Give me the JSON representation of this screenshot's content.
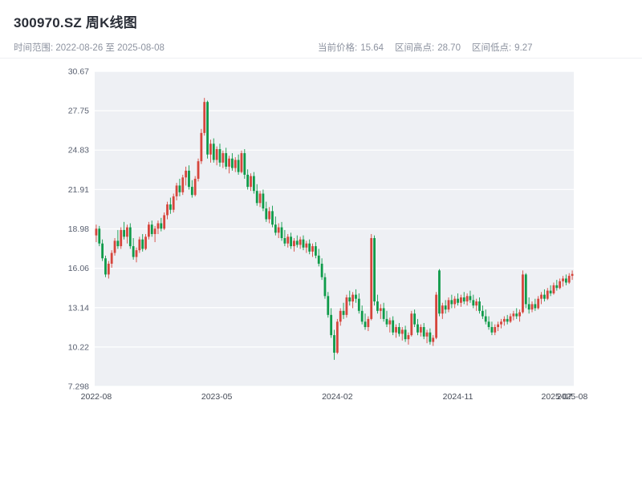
{
  "header": {
    "title": "300970.SZ 周K线图",
    "time_range": "时间范围: 2022-08-26 至 2025-08-08",
    "stats": [
      {
        "label": "当前价格:",
        "value": "15.64"
      },
      {
        "label": "区间高点:",
        "value": "28.70"
      },
      {
        "label": "区间低点:",
        "value": "9.27"
      }
    ]
  },
  "chart_data": {
    "type": "candlestick",
    "title": "300970.SZ 周K线图",
    "symbol": "300970.SZ",
    "period": "weekly",
    "start_date": "2022-08-26",
    "end_date": "2025-08-08",
    "current_price": 15.64,
    "range_high": 28.7,
    "range_low": 9.27,
    "y_min": 7.298,
    "y_max": 30.67,
    "grid": true,
    "y_ticks": [
      {
        "value": 30.67,
        "label": "30.67"
      },
      {
        "value": 27.75,
        "label": "27.75"
      },
      {
        "value": 24.83,
        "label": "24.83"
      },
      {
        "value": 21.91,
        "label": "21.91"
      },
      {
        "value": 18.98,
        "label": "18.98"
      },
      {
        "value": 16.06,
        "label": "16.06"
      },
      {
        "value": 13.14,
        "label": "13.14"
      },
      {
        "value": 10.22,
        "label": "10.22"
      },
      {
        "value": 7.298,
        "label": "7.298"
      }
    ],
    "x_ticks": [
      {
        "index": 0,
        "label": "2022-08"
      },
      {
        "index": 39,
        "label": "2023-05"
      },
      {
        "index": 78,
        "label": "2024-02"
      },
      {
        "index": 117,
        "label": "2024-11"
      },
      {
        "index": 149,
        "label": "2025-07"
      },
      {
        "index": 154,
        "label": "2025-08"
      }
    ],
    "up_color": "#d6453c",
    "down_color": "#0f9b4a",
    "plot_bg": "#eef0f4",
    "grid_color": "#ffffff",
    "candles": [
      [
        18.5,
        19.3,
        18.0,
        19.0
      ],
      [
        19.0,
        19.2,
        17.7,
        17.9
      ],
      [
        17.9,
        18.2,
        16.6,
        16.8
      ],
      [
        16.8,
        17.0,
        15.4,
        15.6
      ],
      [
        15.6,
        16.6,
        15.3,
        16.4
      ],
      [
        16.4,
        17.4,
        16.1,
        17.2
      ],
      [
        17.2,
        18.3,
        17.0,
        18.1
      ],
      [
        18.1,
        18.9,
        17.5,
        17.7
      ],
      [
        17.7,
        19.1,
        17.5,
        18.9
      ],
      [
        18.9,
        19.5,
        18.2,
        18.4
      ],
      [
        18.4,
        19.3,
        17.9,
        19.1
      ],
      [
        19.1,
        19.4,
        17.5,
        17.7
      ],
      [
        17.7,
        18.3,
        16.7,
        16.9
      ],
      [
        16.9,
        17.6,
        16.5,
        17.4
      ],
      [
        17.4,
        18.4,
        17.2,
        18.2
      ],
      [
        18.2,
        18.6,
        17.3,
        17.5
      ],
      [
        17.5,
        18.6,
        17.4,
        18.4
      ],
      [
        18.4,
        19.5,
        18.2,
        19.3
      ],
      [
        19.3,
        19.6,
        18.4,
        18.6
      ],
      [
        18.6,
        19.2,
        18.0,
        19.0
      ],
      [
        19.0,
        19.6,
        18.6,
        19.4
      ],
      [
        19.4,
        19.8,
        18.8,
        19.0
      ],
      [
        19.0,
        20.2,
        18.9,
        20.0
      ],
      [
        20.0,
        21.0,
        19.7,
        20.8
      ],
      [
        20.8,
        21.3,
        20.1,
        20.4
      ],
      [
        20.4,
        21.6,
        20.2,
        21.4
      ],
      [
        21.4,
        22.4,
        21.1,
        22.2
      ],
      [
        22.2,
        22.7,
        21.4,
        21.7
      ],
      [
        21.7,
        23.0,
        21.5,
        22.8
      ],
      [
        22.8,
        23.6,
        22.2,
        23.3
      ],
      [
        23.3,
        23.7,
        21.9,
        22.1
      ],
      [
        22.1,
        22.6,
        21.3,
        21.5
      ],
      [
        21.5,
        22.9,
        21.4,
        22.7
      ],
      [
        22.7,
        24.2,
        22.5,
        24.0
      ],
      [
        24.0,
        26.4,
        23.8,
        26.1
      ],
      [
        26.1,
        28.7,
        25.9,
        28.4
      ],
      [
        28.4,
        28.5,
        24.2,
        24.5
      ],
      [
        24.5,
        25.6,
        23.9,
        25.3
      ],
      [
        25.3,
        25.7,
        23.9,
        24.1
      ],
      [
        24.1,
        25.1,
        23.7,
        24.9
      ],
      [
        24.9,
        25.3,
        23.6,
        23.9
      ],
      [
        23.9,
        24.8,
        23.5,
        24.6
      ],
      [
        24.6,
        25.0,
        23.4,
        23.6
      ],
      [
        23.6,
        24.4,
        23.1,
        24.2
      ],
      [
        24.2,
        24.6,
        23.3,
        23.5
      ],
      [
        23.5,
        24.3,
        23.2,
        24.1
      ],
      [
        24.1,
        24.5,
        23.0,
        23.2
      ],
      [
        23.2,
        24.8,
        23.1,
        24.6
      ],
      [
        24.6,
        24.9,
        22.7,
        23.0
      ],
      [
        23.0,
        23.4,
        21.9,
        22.1
      ],
      [
        22.1,
        23.1,
        21.8,
        22.9
      ],
      [
        22.9,
        23.2,
        21.6,
        21.8
      ],
      [
        21.8,
        22.3,
        20.7,
        20.9
      ],
      [
        20.9,
        21.8,
        20.6,
        21.6
      ],
      [
        21.6,
        21.9,
        20.3,
        20.5
      ],
      [
        20.5,
        21.0,
        19.5,
        19.7
      ],
      [
        19.7,
        20.6,
        19.4,
        20.3
      ],
      [
        20.3,
        20.7,
        19.1,
        19.3
      ],
      [
        19.3,
        19.9,
        18.5,
        18.7
      ],
      [
        18.7,
        19.4,
        18.3,
        19.1
      ],
      [
        19.1,
        19.5,
        18.1,
        18.3
      ],
      [
        18.3,
        18.9,
        17.7,
        17.9
      ],
      [
        17.9,
        18.6,
        17.6,
        18.4
      ],
      [
        18.4,
        18.7,
        17.5,
        17.7
      ],
      [
        17.7,
        18.3,
        17.3,
        18.1
      ],
      [
        18.1,
        18.5,
        17.6,
        17.8
      ],
      [
        17.8,
        18.4,
        17.5,
        18.2
      ],
      [
        18.2,
        18.5,
        17.4,
        17.6
      ],
      [
        17.6,
        18.1,
        17.2,
        17.9
      ],
      [
        17.9,
        18.2,
        17.1,
        17.3
      ],
      [
        17.3,
        17.9,
        16.9,
        17.7
      ],
      [
        17.7,
        18.0,
        16.8,
        17.0
      ],
      [
        17.0,
        17.5,
        16.2,
        16.4
      ],
      [
        16.4,
        16.8,
        15.2,
        15.4
      ],
      [
        15.4,
        15.7,
        13.8,
        14.0
      ],
      [
        14.0,
        14.3,
        12.4,
        12.6
      ],
      [
        12.6,
        13.1,
        10.9,
        11.1
      ],
      [
        11.1,
        11.5,
        9.27,
        9.8
      ],
      [
        9.8,
        12.3,
        9.7,
        12.1
      ],
      [
        12.1,
        13.1,
        11.8,
        12.9
      ],
      [
        12.9,
        13.5,
        12.3,
        12.6
      ],
      [
        12.6,
        14.1,
        12.4,
        13.9
      ],
      [
        13.9,
        14.4,
        13.3,
        13.6
      ],
      [
        13.6,
        14.3,
        13.1,
        14.1
      ],
      [
        14.1,
        14.5,
        13.5,
        13.8
      ],
      [
        13.8,
        14.2,
        12.7,
        12.9
      ],
      [
        12.9,
        13.3,
        11.9,
        12.1
      ],
      [
        12.1,
        12.7,
        11.5,
        11.7
      ],
      [
        11.7,
        12.5,
        11.4,
        12.3
      ],
      [
        12.3,
        18.6,
        12.2,
        18.3
      ],
      [
        18.3,
        18.5,
        13.3,
        13.6
      ],
      [
        13.6,
        14.1,
        12.7,
        12.9
      ],
      [
        12.9,
        13.4,
        12.3,
        13.1
      ],
      [
        13.1,
        13.5,
        12.1,
        12.3
      ],
      [
        12.3,
        12.9,
        11.7,
        11.9
      ],
      [
        11.9,
        12.4,
        11.3,
        12.2
      ],
      [
        12.2,
        12.5,
        11.1,
        11.3
      ],
      [
        11.3,
        11.9,
        10.9,
        11.7
      ],
      [
        11.7,
        12.0,
        11.0,
        11.2
      ],
      [
        11.2,
        11.7,
        10.7,
        11.5
      ],
      [
        11.5,
        11.8,
        10.6,
        10.8
      ],
      [
        10.8,
        11.3,
        10.4,
        11.1
      ],
      [
        11.1,
        12.9,
        11.0,
        12.7
      ],
      [
        12.7,
        13.0,
        11.7,
        11.9
      ],
      [
        11.9,
        12.3,
        11.1,
        11.3
      ],
      [
        11.3,
        11.9,
        11.0,
        11.7
      ],
      [
        11.7,
        12.0,
        10.8,
        11.0
      ],
      [
        11.0,
        11.5,
        10.5,
        11.3
      ],
      [
        11.3,
        11.6,
        10.4,
        10.6
      ],
      [
        10.6,
        11.1,
        10.3,
        10.9
      ],
      [
        10.9,
        14.3,
        10.8,
        14.1
      ],
      [
        15.9,
        16.0,
        12.5,
        12.7
      ],
      [
        12.7,
        13.5,
        12.3,
        13.3
      ],
      [
        13.3,
        13.7,
        12.7,
        13.0
      ],
      [
        13.0,
        13.9,
        12.8,
        13.7
      ],
      [
        13.7,
        14.1,
        13.1,
        13.4
      ],
      [
        13.4,
        14.0,
        13.1,
        13.8
      ],
      [
        13.8,
        14.2,
        13.3,
        13.5
      ],
      [
        13.5,
        14.1,
        13.2,
        13.9
      ],
      [
        13.9,
        14.3,
        13.4,
        13.6
      ],
      [
        13.6,
        14.2,
        13.3,
        14.0
      ],
      [
        14.0,
        14.4,
        13.5,
        13.7
      ],
      [
        13.7,
        14.1,
        13.1,
        13.3
      ],
      [
        13.3,
        13.8,
        12.9,
        13.6
      ],
      [
        13.6,
        13.9,
        12.7,
        12.9
      ],
      [
        12.9,
        13.3,
        12.3,
        12.5
      ],
      [
        12.5,
        13.0,
        11.9,
        12.1
      ],
      [
        12.1,
        12.5,
        11.5,
        11.7
      ],
      [
        11.7,
        12.1,
        11.1,
        11.3
      ],
      [
        11.3,
        11.9,
        11.1,
        11.7
      ],
      [
        11.7,
        12.1,
        11.4,
        11.9
      ],
      [
        11.9,
        12.3,
        11.6,
        12.1
      ],
      [
        12.1,
        12.5,
        11.8,
        12.3
      ],
      [
        12.3,
        12.6,
        11.9,
        12.1
      ],
      [
        12.1,
        12.7,
        12.0,
        12.5
      ],
      [
        12.5,
        12.9,
        12.2,
        12.7
      ],
      [
        12.7,
        13.1,
        12.3,
        12.5
      ],
      [
        12.5,
        13.0,
        12.1,
        12.8
      ],
      [
        12.8,
        15.9,
        12.7,
        15.6
      ],
      [
        15.6,
        15.7,
        13.1,
        13.4
      ],
      [
        13.4,
        13.9,
        12.7,
        13.0
      ],
      [
        13.0,
        13.6,
        12.8,
        13.4
      ],
      [
        13.4,
        13.8,
        12.9,
        13.1
      ],
      [
        13.1,
        14.0,
        13.0,
        13.8
      ],
      [
        13.8,
        14.3,
        13.4,
        14.1
      ],
      [
        14.1,
        14.5,
        13.6,
        13.8
      ],
      [
        13.8,
        14.6,
        13.7,
        14.4
      ],
      [
        14.4,
        14.8,
        14.0,
        14.2
      ],
      [
        14.2,
        15.0,
        14.1,
        14.8
      ],
      [
        14.8,
        15.2,
        14.4,
        14.6
      ],
      [
        14.6,
        15.3,
        14.5,
        15.1
      ],
      [
        15.1,
        15.5,
        14.7,
        15.3
      ],
      [
        15.3,
        15.6,
        14.8,
        15.0
      ],
      [
        15.0,
        15.7,
        14.9,
        15.5
      ],
      [
        15.5,
        15.9,
        15.2,
        15.64
      ]
    ]
  }
}
